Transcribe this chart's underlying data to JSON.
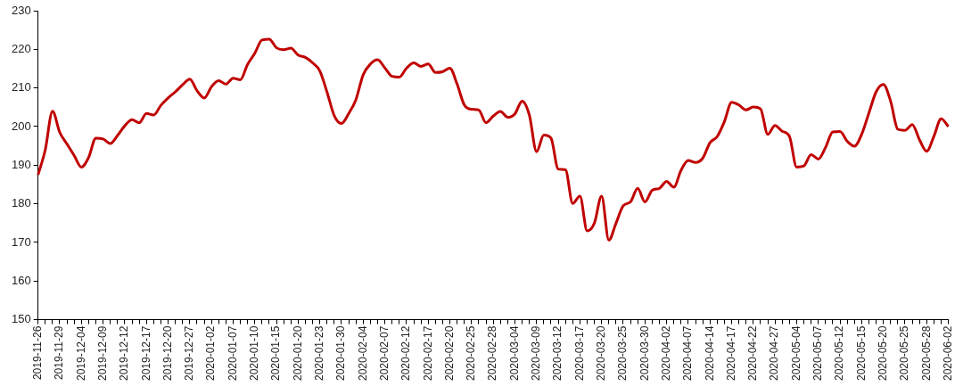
{
  "chart_data": {
    "type": "line",
    "categories": [
      "2019-11-26",
      null,
      null,
      "2019-11-29",
      null,
      null,
      "2019-12-04",
      null,
      null,
      "2019-12-09",
      null,
      null,
      "2019-12-12",
      null,
      null,
      "2019-12-17",
      null,
      null,
      "2019-12-20",
      null,
      null,
      "2019-12-27",
      null,
      null,
      "2020-01-02",
      null,
      null,
      "2020-01-07",
      null,
      null,
      "2020-01-10",
      null,
      null,
      "2020-01-15",
      null,
      null,
      "2020-01-20",
      null,
      null,
      "2020-01-23",
      null,
      null,
      "2020-01-30",
      null,
      null,
      "2020-02-04",
      null,
      null,
      "2020-02-07",
      null,
      null,
      "2020-02-12",
      null,
      null,
      "2020-02-17",
      null,
      null,
      "2020-02-20",
      null,
      null,
      "2020-02-25",
      null,
      null,
      "2020-02-28",
      null,
      null,
      "2020-03-04",
      null,
      null,
      "2020-03-09",
      null,
      null,
      "2020-03-12",
      null,
      null,
      "2020-03-17",
      null,
      null,
      "2020-03-20",
      null,
      null,
      "2020-03-25",
      null,
      null,
      "2020-03-30",
      null,
      null,
      "2020-04-02",
      null,
      null,
      "2020-04-07",
      null,
      null,
      "2020-04-14",
      null,
      null,
      "2020-04-17",
      null,
      null,
      "2020-04-22",
      null,
      null,
      "2020-04-27",
      null,
      null,
      "2020-05-04",
      null,
      null,
      "2020-05-07",
      null,
      null,
      "2020-05-12",
      null,
      null,
      "2020-05-15",
      null,
      null,
      "2020-05-20",
      null,
      null,
      "2020-05-25",
      null,
      null,
      "2020-05-28",
      null,
      null,
      "2020-06-02"
    ],
    "series": [
      {
        "color": "#c00000",
        "values": [
          187.5,
          194,
          204,
          198.5,
          195.5,
          192.5,
          189.5,
          192,
          197,
          196.8,
          195.6,
          197.7,
          200.2,
          201.8,
          201,
          203.4,
          203,
          205.5,
          207.4,
          209,
          210.8,
          212.3,
          209.3,
          207.4,
          210.3,
          211.9,
          211,
          212.5,
          212.1,
          216.1,
          219,
          222.4,
          222.6,
          220.4,
          219.9,
          220.3,
          218.5,
          217.9,
          216.5,
          214.4,
          208.9,
          202.8,
          200.8,
          203.4,
          207,
          213.4,
          216.2,
          217.3,
          215.2,
          213,
          212.8,
          215.1,
          216.5,
          215.6,
          216.2,
          214,
          214.2,
          215.1,
          211,
          205.6,
          204.5,
          204.3,
          201,
          202.7,
          203.9,
          202.4,
          203.3,
          206.6,
          203,
          193.5,
          197.8,
          197,
          189,
          188.8,
          180.1,
          182,
          173,
          175,
          182,
          170.6,
          175,
          179.5,
          180.5,
          184,
          180.5,
          183.5,
          184,
          185.8,
          184.3,
          188.7,
          191.2,
          190.7,
          191.8,
          195.8,
          197.4,
          201.3,
          206.3,
          205.6,
          204.3,
          205.1,
          204.6,
          198,
          200.3,
          198.8,
          197.5,
          189.5,
          189.8,
          192.7,
          191.6,
          194.6,
          198.6,
          198.7,
          196.2,
          194.9,
          198,
          203.5,
          209,
          210.9,
          206.6,
          199.3,
          199,
          200.5,
          196.6,
          193.6,
          197.5,
          202,
          200
        ]
      }
    ],
    "ylim": [
      150,
      230
    ],
    "yticks": [
      150,
      160,
      170,
      180,
      190,
      200,
      210,
      220,
      230
    ],
    "grid": false,
    "legend": false,
    "marker": "none",
    "line_style": "solid"
  }
}
